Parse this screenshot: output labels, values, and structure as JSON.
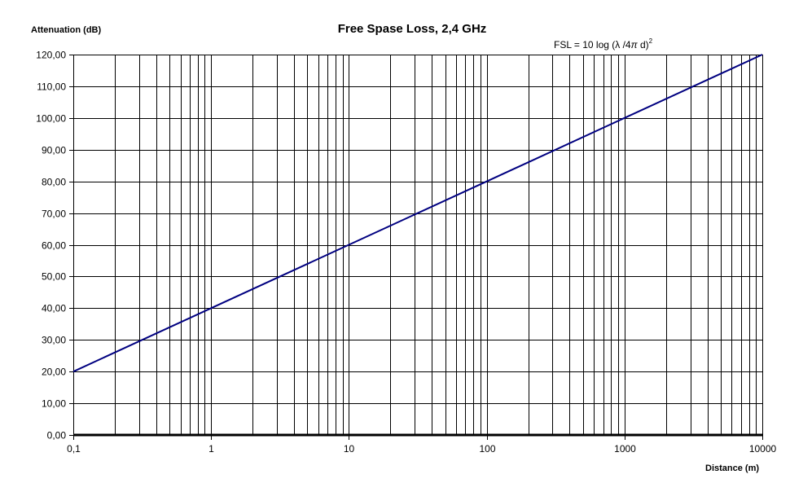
{
  "chart_data": {
    "type": "line",
    "title": "Free Spase Loss, 2,4 GHz",
    "xlabel": "Distance (m)",
    "ylabel": "Attenuation (dB)",
    "annotation": {
      "prefix": "FSL = 10 log (λ /4",
      "pi": "π",
      "suffix": " d)",
      "exponent": "2"
    },
    "x_scale": "log",
    "xlim": [
      0.1,
      10000
    ],
    "ylim": [
      0,
      120
    ],
    "grid": true,
    "x_ticks": [
      0.1,
      1,
      10,
      100,
      1000,
      10000
    ],
    "x_tick_labels": [
      "0,1",
      "1",
      "10",
      "100",
      "1000",
      "10000"
    ],
    "y_ticks": [
      0,
      10,
      20,
      30,
      40,
      50,
      60,
      70,
      80,
      90,
      100,
      110,
      120
    ],
    "y_tick_labels": [
      "0,00",
      "10,00",
      "20,00",
      "30,00",
      "40,00",
      "50,00",
      "60,00",
      "70,00",
      "80,00",
      "90,00",
      "100,00",
      "110,00",
      "120,00"
    ],
    "series": [
      {
        "color": "#000080",
        "x": [
          0.1,
          1,
          10,
          100,
          1000,
          10000
        ],
        "y": [
          20,
          40,
          60,
          80,
          100,
          120
        ]
      }
    ]
  }
}
